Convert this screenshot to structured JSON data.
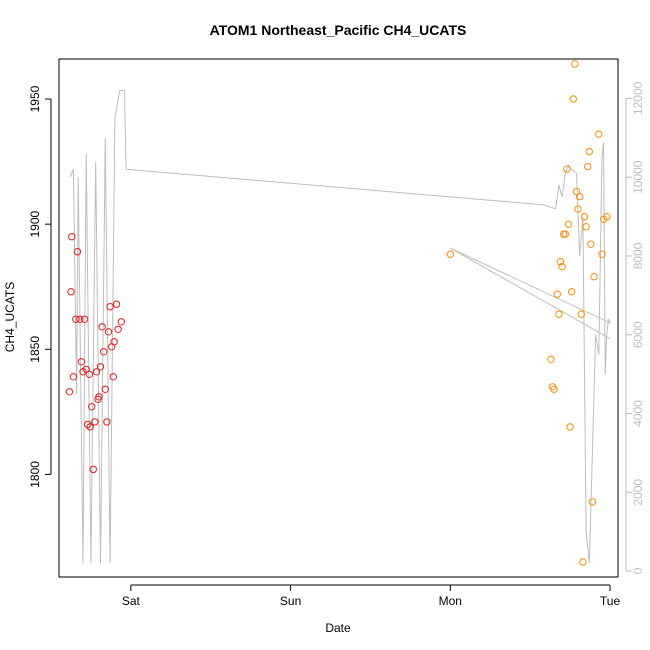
{
  "chart_data": {
    "type": "scatter",
    "title": "ATOM1 Northeast_Pacific CH4_UCATS",
    "xlabel": "Date",
    "ylabel": "CH4_UCATS",
    "x_unit": "days since Fri 00:00",
    "x_range": [
      0.55,
      4.05
    ],
    "x_ticks": [
      {
        "label": "Sat",
        "value": 1
      },
      {
        "label": "Sun",
        "value": 2
      },
      {
        "label": "Mon",
        "value": 3
      },
      {
        "label": "Tue",
        "value": 4
      }
    ],
    "y_range": [
      1759,
      1966
    ],
    "y_ticks": [
      1800,
      1850,
      1900,
      1950
    ],
    "y2_range": [
      -150,
      13000
    ],
    "y2_ticks": [
      0,
      2000,
      4000,
      6000,
      8000,
      10000,
      12000
    ],
    "colors": {
      "series_1": "#e31a1c",
      "series_2": "#ff8c00",
      "altitude": "#bdbdbd"
    },
    "series": [
      {
        "color": "#e31a1c",
        "points": [
          [
            0.615,
            1833
          ],
          [
            0.625,
            1873
          ],
          [
            0.63,
            1895
          ],
          [
            0.64,
            1839
          ],
          [
            0.655,
            1862
          ],
          [
            0.665,
            1889
          ],
          [
            0.68,
            1862
          ],
          [
            0.69,
            1845
          ],
          [
            0.7,
            1841
          ],
          [
            0.71,
            1862
          ],
          [
            0.72,
            1842
          ],
          [
            0.73,
            1820
          ],
          [
            0.74,
            1840
          ],
          [
            0.745,
            1819
          ],
          [
            0.755,
            1827
          ],
          [
            0.765,
            1802
          ],
          [
            0.775,
            1821
          ],
          [
            0.785,
            1841
          ],
          [
            0.795,
            1830
          ],
          [
            0.8,
            1831
          ],
          [
            0.81,
            1843
          ],
          [
            0.82,
            1859
          ],
          [
            0.83,
            1849
          ],
          [
            0.84,
            1834
          ],
          [
            0.85,
            1821
          ],
          [
            0.86,
            1857
          ],
          [
            0.87,
            1867
          ],
          [
            0.88,
            1851
          ],
          [
            0.89,
            1839
          ],
          [
            0.895,
            1853
          ],
          [
            0.91,
            1868
          ],
          [
            0.92,
            1858
          ],
          [
            0.94,
            1861
          ]
        ]
      },
      {
        "color": "#ff8c00",
        "points": [
          [
            3.0,
            1888
          ],
          [
            3.63,
            1846
          ],
          [
            3.64,
            1835
          ],
          [
            3.65,
            1834
          ],
          [
            3.67,
            1872
          ],
          [
            3.68,
            1864
          ],
          [
            3.69,
            1885
          ],
          [
            3.7,
            1883
          ],
          [
            3.71,
            1896
          ],
          [
            3.72,
            1896
          ],
          [
            3.73,
            1922
          ],
          [
            3.74,
            1900
          ],
          [
            3.75,
            1819
          ],
          [
            3.76,
            1873
          ],
          [
            3.77,
            1950
          ],
          [
            3.78,
            1964
          ],
          [
            3.79,
            1913
          ],
          [
            3.8,
            1906
          ],
          [
            3.81,
            1911
          ],
          [
            3.82,
            1864
          ],
          [
            3.83,
            1765
          ],
          [
            3.84,
            1903
          ],
          [
            3.85,
            1899
          ],
          [
            3.86,
            1923
          ],
          [
            3.87,
            1929
          ],
          [
            3.88,
            1892
          ],
          [
            3.89,
            1789
          ],
          [
            3.9,
            1879
          ],
          [
            3.93,
            1936
          ],
          [
            3.95,
            1888
          ],
          [
            3.96,
            1902
          ],
          [
            3.98,
            1903
          ]
        ]
      }
    ],
    "altitude_line": [
      [
        0.62,
        10000
      ],
      [
        0.64,
        10200
      ],
      [
        0.66,
        4500
      ],
      [
        0.67,
        10000
      ],
      [
        0.7,
        200
      ],
      [
        0.72,
        10600
      ],
      [
        0.75,
        200
      ],
      [
        0.78,
        10400
      ],
      [
        0.81,
        200
      ],
      [
        0.84,
        11000
      ],
      [
        0.87,
        200
      ],
      [
        0.9,
        11500
      ],
      [
        0.93,
        12200
      ],
      [
        0.96,
        12200
      ],
      [
        0.97,
        10200
      ],
      [
        3.58,
        9300
      ],
      [
        3.66,
        9200
      ],
      [
        3.68,
        9800
      ],
      [
        3.7,
        9500
      ],
      [
        3.72,
        10100
      ],
      [
        3.74,
        10300
      ],
      [
        3.76,
        10200
      ],
      [
        3.79,
        10100
      ],
      [
        3.81,
        8000
      ],
      [
        3.83,
        9000
      ],
      [
        3.85,
        1000
      ],
      [
        3.87,
        200
      ],
      [
        3.89,
        3000
      ],
      [
        3.91,
        6000
      ],
      [
        3.93,
        5500
      ],
      [
        3.95,
        10500
      ],
      [
        3.96,
        10900
      ],
      [
        3.97,
        5000
      ],
      [
        3.98,
        6000
      ],
      [
        3.99,
        6400
      ],
      [
        4.0,
        6300
      ],
      [
        3.0,
        8200
      ],
      [
        4.0,
        5900
      ]
    ]
  }
}
